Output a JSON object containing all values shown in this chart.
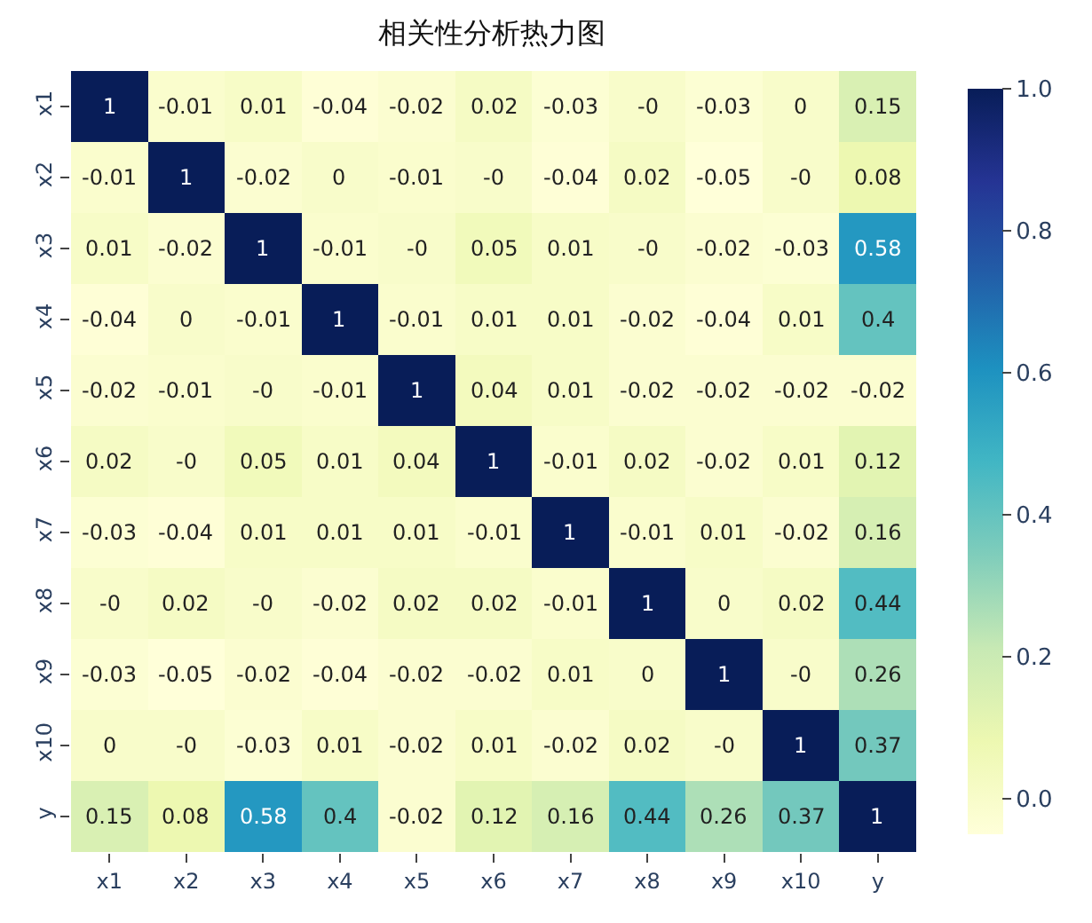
{
  "chart_data": {
    "type": "heatmap",
    "title": "相关性分析热力图",
    "categories": [
      "x1",
      "x2",
      "x3",
      "x4",
      "x5",
      "x6",
      "x7",
      "x8",
      "x9",
      "x10",
      "y"
    ],
    "y_categories": [
      "x1",
      "x2",
      "x3",
      "x4",
      "x5",
      "x6",
      "x7",
      "x8",
      "x9",
      "x10",
      "y"
    ],
    "cells": [
      [
        1,
        -0.01,
        0.01,
        -0.04,
        -0.02,
        0.02,
        -0.03,
        0,
        -0.03,
        0,
        0.15
      ],
      [
        -0.01,
        1,
        -0.02,
        0,
        -0.01,
        0,
        -0.04,
        0.02,
        -0.05,
        0,
        0.08
      ],
      [
        0.01,
        -0.02,
        1,
        -0.01,
        0,
        0.05,
        0.01,
        0,
        -0.02,
        -0.03,
        0.58
      ],
      [
        -0.04,
        0,
        -0.01,
        1,
        -0.01,
        0.01,
        0.01,
        -0.02,
        -0.04,
        0.01,
        0.4
      ],
      [
        -0.02,
        -0.01,
        0,
        -0.01,
        1,
        0.04,
        0.01,
        -0.02,
        -0.02,
        -0.02,
        -0.02
      ],
      [
        0.02,
        0,
        0.05,
        0.01,
        0.04,
        1,
        -0.01,
        0.02,
        -0.02,
        0.01,
        0.12
      ],
      [
        -0.03,
        -0.04,
        0.01,
        0.01,
        0.01,
        -0.01,
        1,
        -0.01,
        0.01,
        -0.02,
        0.16
      ],
      [
        0,
        0.02,
        0,
        -0.02,
        0.02,
        0.02,
        -0.01,
        1,
        0,
        0.02,
        0.44
      ],
      [
        -0.03,
        -0.05,
        -0.02,
        -0.04,
        -0.02,
        -0.02,
        0.01,
        0,
        1,
        0,
        0.26
      ],
      [
        0,
        0,
        -0.03,
        0.01,
        -0.02,
        0.01,
        -0.02,
        0.02,
        0,
        1,
        0.37
      ],
      [
        0.15,
        0.08,
        0.58,
        0.4,
        -0.02,
        0.12,
        0.16,
        0.44,
        0.26,
        0.37,
        1
      ]
    ],
    "cell_labels": [
      [
        "1",
        "-0.01",
        "0.01",
        "-0.04",
        "-0.02",
        "0.02",
        "-0.03",
        "-0",
        "-0.03",
        "0",
        "0.15"
      ],
      [
        "-0.01",
        "1",
        "-0.02",
        "0",
        "-0.01",
        "-0",
        "-0.04",
        "0.02",
        "-0.05",
        "-0",
        "0.08"
      ],
      [
        "0.01",
        "-0.02",
        "1",
        "-0.01",
        "-0",
        "0.05",
        "0.01",
        "-0",
        "-0.02",
        "-0.03",
        "0.58"
      ],
      [
        "-0.04",
        "0",
        "-0.01",
        "1",
        "-0.01",
        "0.01",
        "0.01",
        "-0.02",
        "-0.04",
        "0.01",
        "0.4"
      ],
      [
        "-0.02",
        "-0.01",
        "-0",
        "-0.01",
        "1",
        "0.04",
        "0.01",
        "-0.02",
        "-0.02",
        "-0.02",
        "-0.02"
      ],
      [
        "0.02",
        "-0",
        "0.05",
        "0.01",
        "0.04",
        "1",
        "-0.01",
        "0.02",
        "-0.02",
        "0.01",
        "0.12"
      ],
      [
        "-0.03",
        "-0.04",
        "0.01",
        "0.01",
        "0.01",
        "-0.01",
        "1",
        "-0.01",
        "0.01",
        "-0.02",
        "0.16"
      ],
      [
        "-0",
        "0.02",
        "-0",
        "-0.02",
        "0.02",
        "0.02",
        "-0.01",
        "1",
        "0",
        "0.02",
        "0.44"
      ],
      [
        "-0.03",
        "-0.05",
        "-0.02",
        "-0.04",
        "-0.02",
        "-0.02",
        "0.01",
        "0",
        "1",
        "-0",
        "0.26"
      ],
      [
        "0",
        "-0",
        "-0.03",
        "0.01",
        "-0.02",
        "0.01",
        "-0.02",
        "0.02",
        "-0",
        "1",
        "0.37"
      ],
      [
        "0.15",
        "0.08",
        "0.58",
        "0.4",
        "-0.02",
        "0.12",
        "0.16",
        "0.44",
        "0.26",
        "0.37",
        "1"
      ]
    ],
    "clim": [
      -0.05,
      1.0
    ],
    "cticks": [
      {
        "value": 0,
        "label": "0.0"
      },
      {
        "value": 0.2,
        "label": "0.2"
      },
      {
        "value": 0.4,
        "label": "0.4"
      },
      {
        "value": 0.6,
        "label": "0.6"
      },
      {
        "value": 0.8,
        "label": "0.8"
      },
      {
        "value": 1.0,
        "label": "1.0"
      }
    ]
  }
}
